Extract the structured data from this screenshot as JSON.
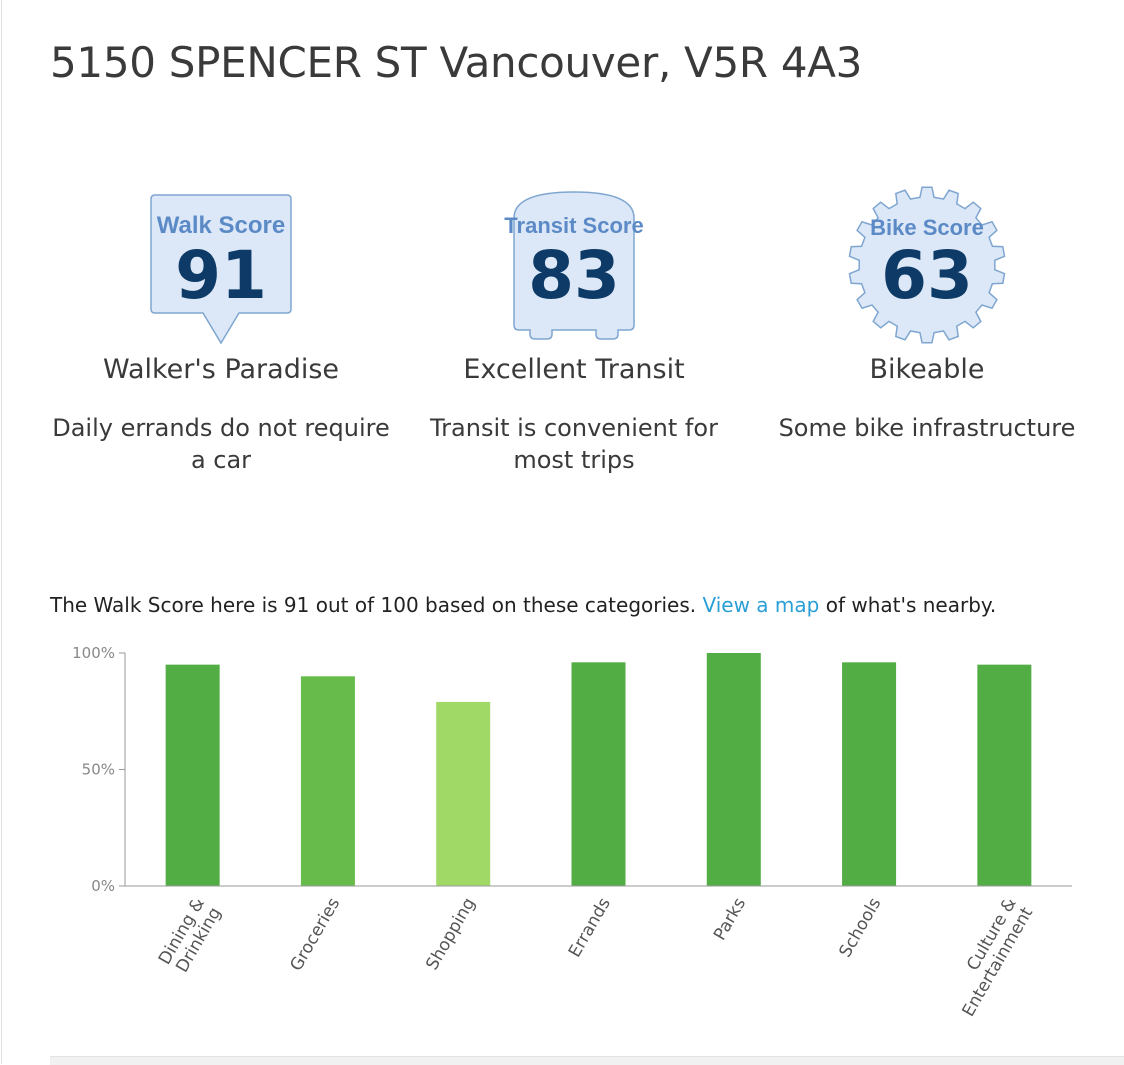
{
  "address": "5150 SPENCER ST Vancouver, V5R 4A3",
  "scores": {
    "walk": {
      "label": "Walk Score",
      "value": "91",
      "title": "Walker's Paradise",
      "description": "Daily errands do not require a car"
    },
    "transit": {
      "label": "Transit Score",
      "value": "83",
      "title": "Excellent Transit",
      "description": "Transit is convenient for most trips"
    },
    "bike": {
      "label": "Bike Score",
      "value": "63",
      "title": "Bikeable",
      "description": "Some bike infrastructure"
    }
  },
  "intro": {
    "before_link": "The Walk Score here is 91 out of 100 based on these categories. ",
    "link_text": "View a map",
    "after_link": " of what's nearby."
  },
  "colors": {
    "badge_fill": "#dce8f7",
    "badge_stroke": "#7fa6d0",
    "badge_label": "#5b8ac6",
    "badge_number": "#0d3a66",
    "link": "#2a9fd6"
  },
  "chart_data": {
    "type": "bar",
    "categories": [
      "Dining & Drinking",
      "Groceries",
      "Shopping",
      "Errands",
      "Parks",
      "Schools",
      "Culture & Entertainment"
    ],
    "values": [
      95,
      90,
      79,
      96,
      100,
      96,
      95
    ],
    "bar_colors": [
      "#52ad45",
      "#67bb4a",
      "#a1d966",
      "#52ad45",
      "#52ad45",
      "#52ad45",
      "#52ad45"
    ],
    "y_ticks": [
      "0%",
      "50%",
      "100%"
    ],
    "ylim": [
      0,
      100
    ],
    "grid": false
  }
}
